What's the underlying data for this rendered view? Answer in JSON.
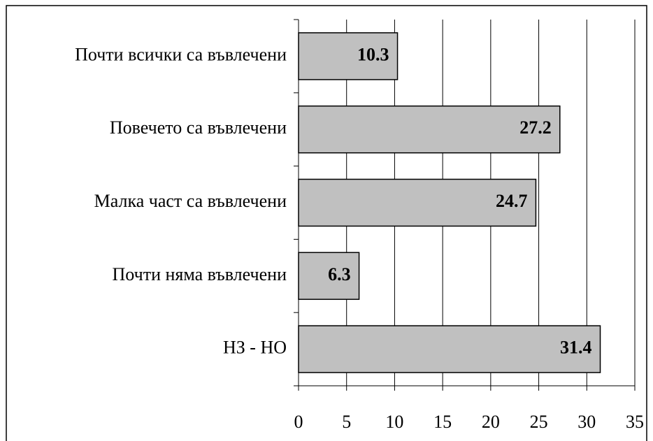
{
  "chart_data": {
    "type": "barh",
    "categories": [
      "Почти всички са въвлечени",
      "Повечето са въвлечени",
      "Малка част са въвлечени",
      "Почти няма въвлечени",
      "НЗ - НО"
    ],
    "values": [
      10.3,
      27.2,
      24.7,
      6.3,
      31.4
    ],
    "color": "#c0c0c0",
    "xlim": [
      0,
      35
    ],
    "xticks": [
      0,
      5,
      10,
      15,
      20,
      25,
      30,
      35
    ],
    "grid": true
  }
}
